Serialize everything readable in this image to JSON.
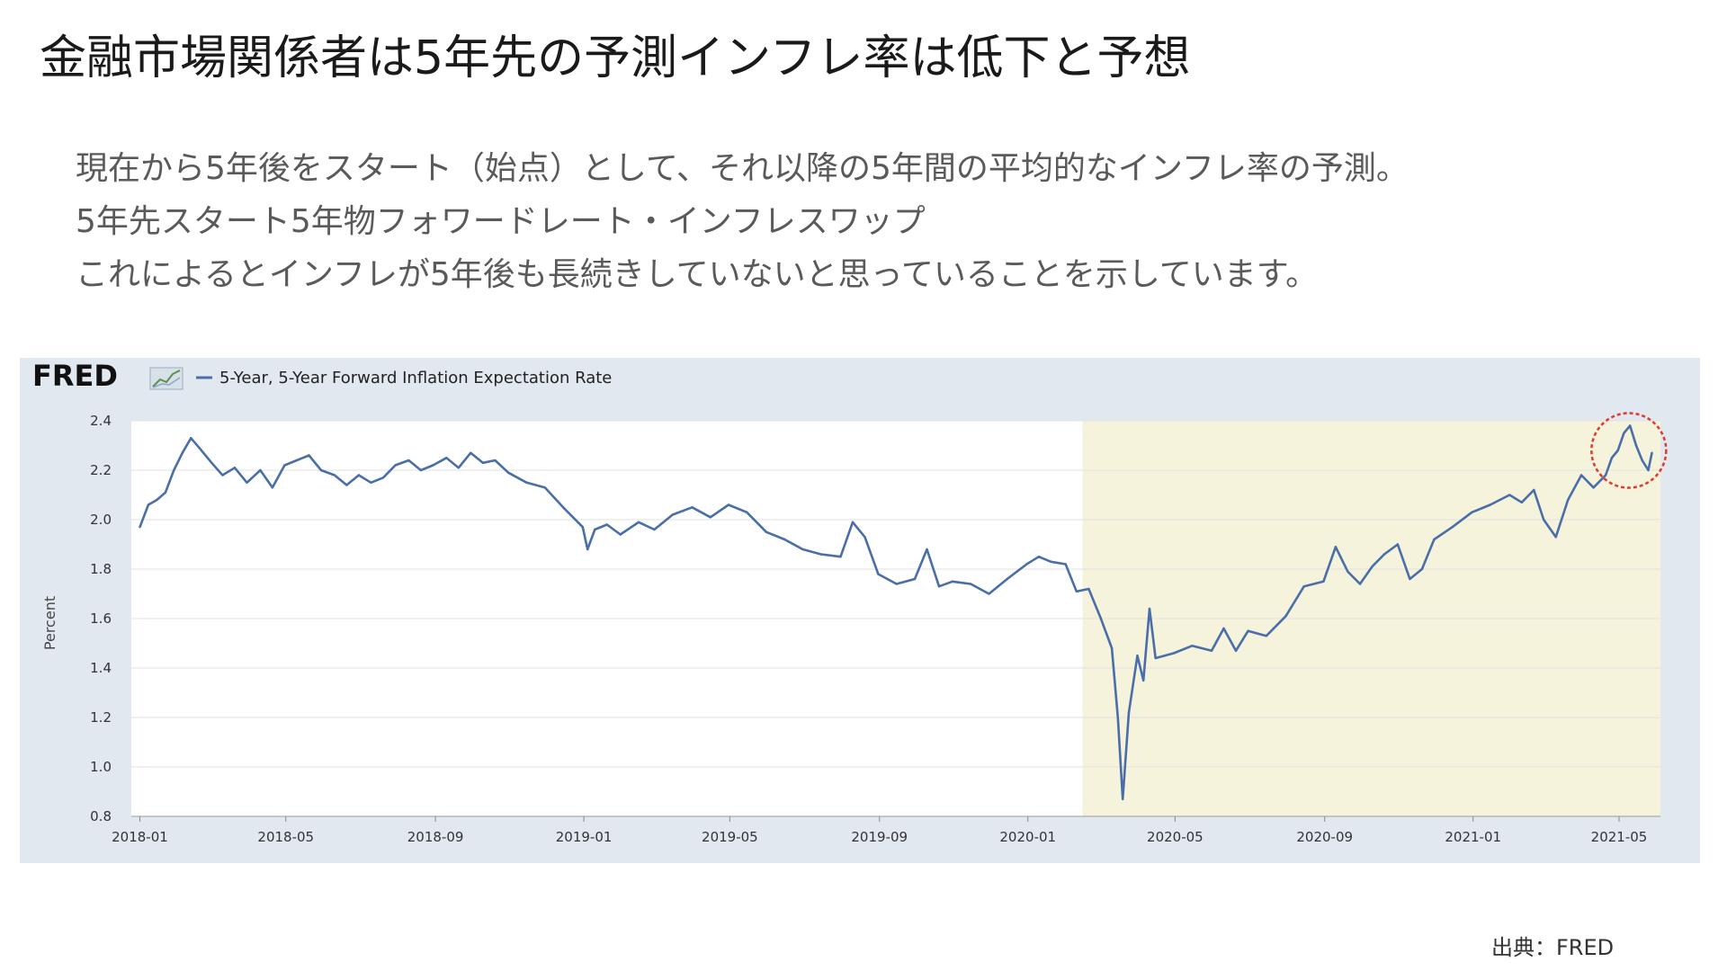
{
  "slide": {
    "title": "金融市場関係者は5年先の予測インフレ率は低下と予想",
    "description": [
      "現在から5年後をスタート（始点）として、それ以降の5年間の平均的なインフレ率の予測。",
      "5年先スタート5年物フォワードレート・インフレスワップ",
      "これによるとインフレが5年後も長続きしていないと思っていることを示しています。"
    ],
    "source": "出典：FRED"
  },
  "colors": {
    "series": "#4a6ea8",
    "recession_shade": "#f5f3dc",
    "panel_bg": "#e1e8f0",
    "plot_bg": "#ffffff",
    "highlight_circle": "#e03a2e"
  },
  "chart_data": {
    "type": "line",
    "brand": "FRED",
    "legend": "5-Year, 5-Year Forward Inflation Expectation Rate",
    "ylabel": "Percent",
    "xlabel": "",
    "ylim": [
      0.8,
      2.4
    ],
    "yticks": [
      "0.8",
      "1.0",
      "1.2",
      "1.4",
      "1.6",
      "1.8",
      "2.0",
      "2.2",
      "2.4"
    ],
    "xlim": [
      "2017-12-25",
      "2021-06-04"
    ],
    "xticks": [
      "2018-01",
      "2018-05",
      "2018-09",
      "2019-01",
      "2019-05",
      "2019-09",
      "2020-01",
      "2020-05",
      "2020-09",
      "2021-01",
      "2021-05"
    ],
    "grid": "horizontal",
    "shaded_region": {
      "start": "2020-02-15",
      "end": "2021-06-04"
    },
    "highlight": {
      "shape": "circle",
      "start": "2021-04-20",
      "end": "2021-06-04"
    },
    "series": [
      {
        "points": [
          [
            "2018-01-01",
            1.97
          ],
          [
            "2018-01-08",
            2.06
          ],
          [
            "2018-01-15",
            2.08
          ],
          [
            "2018-01-22",
            2.11
          ],
          [
            "2018-01-29",
            2.2
          ],
          [
            "2018-02-05",
            2.27
          ],
          [
            "2018-02-12",
            2.33
          ],
          [
            "2018-02-19",
            2.29
          ],
          [
            "2018-03-01",
            2.23
          ],
          [
            "2018-03-10",
            2.18
          ],
          [
            "2018-03-20",
            2.21
          ],
          [
            "2018-03-30",
            2.15
          ],
          [
            "2018-04-10",
            2.2
          ],
          [
            "2018-04-20",
            2.13
          ],
          [
            "2018-04-30",
            2.22
          ],
          [
            "2018-05-10",
            2.24
          ],
          [
            "2018-05-20",
            2.26
          ],
          [
            "2018-05-30",
            2.2
          ],
          [
            "2018-06-10",
            2.18
          ],
          [
            "2018-06-20",
            2.14
          ],
          [
            "2018-06-30",
            2.18
          ],
          [
            "2018-07-10",
            2.15
          ],
          [
            "2018-07-20",
            2.17
          ],
          [
            "2018-07-30",
            2.22
          ],
          [
            "2018-08-10",
            2.24
          ],
          [
            "2018-08-20",
            2.2
          ],
          [
            "2018-08-30",
            2.22
          ],
          [
            "2018-09-10",
            2.25
          ],
          [
            "2018-09-20",
            2.21
          ],
          [
            "2018-09-30",
            2.27
          ],
          [
            "2018-10-10",
            2.23
          ],
          [
            "2018-10-20",
            2.24
          ],
          [
            "2018-10-31",
            2.19
          ],
          [
            "2018-11-15",
            2.15
          ],
          [
            "2018-11-30",
            2.13
          ],
          [
            "2018-12-15",
            2.05
          ],
          [
            "2018-12-31",
            1.97
          ],
          [
            "2019-01-04",
            1.88
          ],
          [
            "2019-01-10",
            1.96
          ],
          [
            "2019-01-20",
            1.98
          ],
          [
            "2019-01-31",
            1.94
          ],
          [
            "2019-02-15",
            1.99
          ],
          [
            "2019-02-28",
            1.96
          ],
          [
            "2019-03-15",
            2.02
          ],
          [
            "2019-03-31",
            2.05
          ],
          [
            "2019-04-15",
            2.01
          ],
          [
            "2019-04-30",
            2.06
          ],
          [
            "2019-05-15",
            2.03
          ],
          [
            "2019-05-31",
            1.95
          ],
          [
            "2019-06-15",
            1.92
          ],
          [
            "2019-06-30",
            1.88
          ],
          [
            "2019-07-15",
            1.86
          ],
          [
            "2019-07-31",
            1.85
          ],
          [
            "2019-08-10",
            1.99
          ],
          [
            "2019-08-20",
            1.93
          ],
          [
            "2019-08-31",
            1.78
          ],
          [
            "2019-09-15",
            1.74
          ],
          [
            "2019-09-30",
            1.76
          ],
          [
            "2019-10-10",
            1.88
          ],
          [
            "2019-10-20",
            1.73
          ],
          [
            "2019-10-31",
            1.75
          ],
          [
            "2019-11-15",
            1.74
          ],
          [
            "2019-11-30",
            1.7
          ],
          [
            "2019-12-15",
            1.76
          ],
          [
            "2019-12-31",
            1.82
          ],
          [
            "2020-01-10",
            1.85
          ],
          [
            "2020-01-20",
            1.83
          ],
          [
            "2020-02-01",
            1.82
          ],
          [
            "2020-02-10",
            1.71
          ],
          [
            "2020-02-20",
            1.72
          ],
          [
            "2020-03-01",
            1.6
          ],
          [
            "2020-03-10",
            1.48
          ],
          [
            "2020-03-15",
            1.2
          ],
          [
            "2020-03-19",
            0.87
          ],
          [
            "2020-03-24",
            1.22
          ],
          [
            "2020-03-31",
            1.45
          ],
          [
            "2020-04-05",
            1.35
          ],
          [
            "2020-04-10",
            1.64
          ],
          [
            "2020-04-15",
            1.44
          ],
          [
            "2020-04-30",
            1.46
          ],
          [
            "2020-05-15",
            1.49
          ],
          [
            "2020-05-31",
            1.47
          ],
          [
            "2020-06-10",
            1.56
          ],
          [
            "2020-06-20",
            1.47
          ],
          [
            "2020-06-30",
            1.55
          ],
          [
            "2020-07-15",
            1.53
          ],
          [
            "2020-07-31",
            1.61
          ],
          [
            "2020-08-15",
            1.73
          ],
          [
            "2020-08-31",
            1.75
          ],
          [
            "2020-09-10",
            1.89
          ],
          [
            "2020-09-20",
            1.79
          ],
          [
            "2020-09-30",
            1.74
          ],
          [
            "2020-10-10",
            1.81
          ],
          [
            "2020-10-20",
            1.86
          ],
          [
            "2020-10-31",
            1.9
          ],
          [
            "2020-11-10",
            1.76
          ],
          [
            "2020-11-20",
            1.8
          ],
          [
            "2020-11-30",
            1.92
          ],
          [
            "2020-12-15",
            1.97
          ],
          [
            "2020-12-31",
            2.03
          ],
          [
            "2021-01-15",
            2.06
          ],
          [
            "2021-01-31",
            2.1
          ],
          [
            "2021-02-10",
            2.07
          ],
          [
            "2021-02-20",
            2.12
          ],
          [
            "2021-02-28",
            2.0
          ],
          [
            "2021-03-10",
            1.93
          ],
          [
            "2021-03-20",
            2.08
          ],
          [
            "2021-03-31",
            2.18
          ],
          [
            "2021-04-10",
            2.13
          ],
          [
            "2021-04-20",
            2.18
          ],
          [
            "2021-04-25",
            2.25
          ],
          [
            "2021-04-30",
            2.28
          ],
          [
            "2021-05-05",
            2.35
          ],
          [
            "2021-05-10",
            2.38
          ],
          [
            "2021-05-15",
            2.3
          ],
          [
            "2021-05-20",
            2.24
          ],
          [
            "2021-05-25",
            2.2
          ],
          [
            "2021-05-28",
            2.27
          ]
        ]
      }
    ]
  }
}
